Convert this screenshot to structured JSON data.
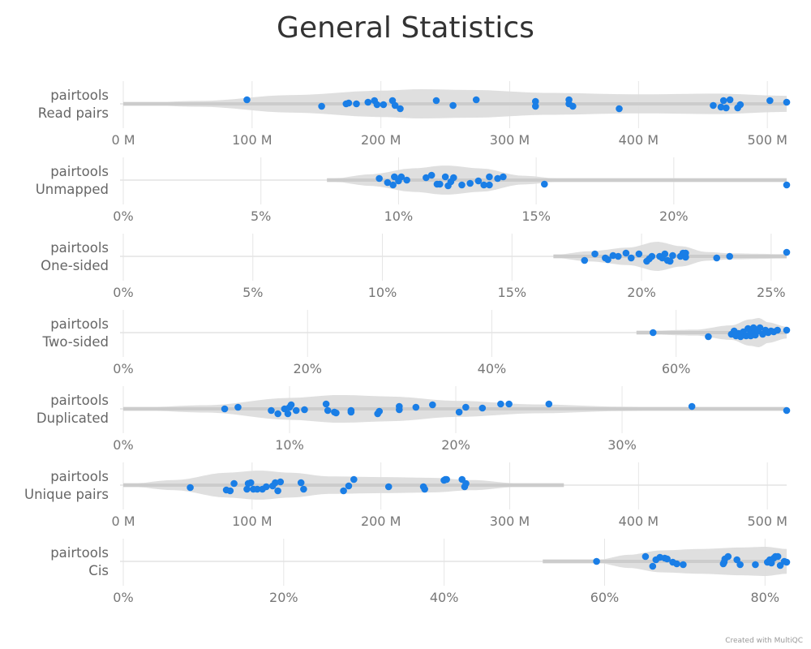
{
  "credit": "Created with MultiQC",
  "chart_data": {
    "type": "violin",
    "title": "General Statistics",
    "point_color": "#1a7ee6",
    "violin_color": "#dddddd",
    "panels": [
      {
        "label_line1": "pairtools",
        "label_line2": "Read pairs",
        "range": [
          0,
          515
        ],
        "ticks": [
          0,
          100,
          200,
          300,
          400,
          500
        ],
        "tick_labels": [
          "0 M",
          "100 M",
          "200 M",
          "300 M",
          "400 M",
          "500 M"
        ],
        "violin_start": 0,
        "violin_end": 515,
        "density": [
          [
            0,
            0.05
          ],
          [
            60,
            0.2
          ],
          [
            130,
            0.6
          ],
          [
            200,
            0.9
          ],
          [
            230,
            1.0
          ],
          [
            270,
            0.95
          ],
          [
            330,
            0.75
          ],
          [
            400,
            0.65
          ],
          [
            460,
            0.7
          ],
          [
            515,
            0.55
          ]
        ],
        "values": [
          96,
          154,
          173,
          175,
          181,
          190,
          195,
          197,
          202,
          209,
          211,
          215,
          243,
          256,
          274,
          320,
          320,
          346,
          346,
          349,
          385,
          458,
          464,
          466,
          468,
          471,
          477,
          479,
          502,
          515
        ],
        "jitter": [
          -0.25,
          0.15,
          0.0,
          -0.05,
          0.0,
          -0.1,
          -0.2,
          0.05,
          0.05,
          -0.2,
          0.1,
          0.3,
          -0.2,
          0.1,
          -0.25,
          0.15,
          -0.15,
          0.0,
          -0.25,
          0.15,
          0.3,
          0.1,
          0.2,
          -0.2,
          0.25,
          -0.25,
          0.25,
          0.05,
          -0.2,
          -0.1
        ]
      },
      {
        "label_line1": "pairtools",
        "label_line2": "Unmapped",
        "range": [
          0,
          24.1
        ],
        "ticks": [
          0,
          5,
          10,
          15,
          20
        ],
        "tick_labels": [
          "0%",
          "5%",
          "10%",
          "15%",
          "20%"
        ],
        "violin_start": 7.4,
        "violin_end": 24.1,
        "density": [
          [
            7.4,
            0.05
          ],
          [
            9,
            0.4
          ],
          [
            10.5,
            0.8
          ],
          [
            11.7,
            1.0
          ],
          [
            13,
            0.8
          ],
          [
            14.5,
            0.3
          ],
          [
            16,
            0.08
          ],
          [
            24.1,
            0.05
          ]
        ],
        "values": [
          9.3,
          9.6,
          9.8,
          9.85,
          10.0,
          10.1,
          10.3,
          11.5,
          11.4,
          11.8,
          11.9,
          12.3,
          12.0,
          11.0,
          11.2,
          11.7,
          12.6,
          12.9,
          13.1,
          13.3,
          13.3,
          13.6,
          13.8,
          15.3,
          24.1
        ],
        "jitter": [
          -0.1,
          0.15,
          0.3,
          -0.2,
          0.05,
          -0.2,
          0.0,
          0.25,
          0.25,
          0.35,
          0.1,
          0.3,
          -0.15,
          -0.15,
          -0.3,
          -0.2,
          0.2,
          0.05,
          0.3,
          0.3,
          -0.2,
          -0.1,
          -0.2,
          0.25,
          0.3
        ],
        "raw_values_note": ""
      },
      {
        "label_line1": "pairtools",
        "label_line2": "One-sided",
        "range": [
          0,
          25.6
        ],
        "ticks": [
          0,
          5,
          10,
          15,
          20,
          25
        ],
        "tick_labels": [
          "0%",
          "5%",
          "10%",
          "15%",
          "20%",
          "25%"
        ],
        "violin_start": 16.6,
        "violin_end": 25.6,
        "density": [
          [
            16.6,
            0.1
          ],
          [
            18,
            0.35
          ],
          [
            19.5,
            0.6
          ],
          [
            20.6,
            1.0
          ],
          [
            21.5,
            0.7
          ],
          [
            22.5,
            0.3
          ],
          [
            23.5,
            0.2
          ],
          [
            25.6,
            0.15
          ]
        ],
        "values": [
          17.8,
          18.2,
          18.6,
          18.7,
          18.9,
          19.1,
          19.4,
          19.6,
          19.9,
          20.2,
          20.4,
          20.3,
          20.7,
          20.8,
          20.9,
          21.0,
          21.1,
          21.2,
          21.5,
          21.6,
          21.7,
          21.7,
          22.9,
          23.4,
          25.6
        ],
        "jitter": [
          0.25,
          -0.15,
          0.1,
          0.2,
          -0.05,
          0.0,
          -0.2,
          0.1,
          -0.15,
          0.3,
          0.0,
          0.15,
          0.0,
          0.1,
          -0.15,
          0.25,
          0.3,
          -0.05,
          0.0,
          -0.2,
          0.05,
          -0.2,
          0.1,
          0.0,
          -0.25
        ]
      },
      {
        "label_line1": "pairtools",
        "label_line2": "Two-sided",
        "range": [
          0,
          72.0
        ],
        "ticks": [
          0,
          20,
          40,
          60
        ],
        "tick_labels": [
          "0%",
          "20%",
          "40%",
          "60%"
        ],
        "violin_start": 55.7,
        "violin_end": 72.0,
        "density": [
          [
            55.7,
            0.1
          ],
          [
            62,
            0.2
          ],
          [
            66,
            0.5
          ],
          [
            68,
            0.9
          ],
          [
            69,
            1.0
          ],
          [
            70,
            0.7
          ],
          [
            72,
            0.4
          ]
        ],
        "values": [
          57.5,
          63.5,
          66.0,
          66.3,
          66.5,
          66.8,
          67.0,
          67.3,
          67.6,
          67.8,
          68.0,
          68.1,
          68.2,
          68.4,
          68.5,
          68.6,
          68.9,
          69.1,
          69.4,
          69.7,
          70.0,
          70.3,
          70.6,
          71.0,
          72.0
        ],
        "jitter": [
          0.0,
          0.25,
          0.1,
          -0.1,
          0.2,
          0.05,
          0.25,
          -0.05,
          0.2,
          -0.25,
          0.1,
          0.2,
          -0.15,
          -0.3,
          0.0,
          0.15,
          -0.1,
          -0.3,
          0.1,
          -0.15,
          0.0,
          -0.1,
          -0.05,
          -0.15,
          -0.15
        ]
      },
      {
        "label_line1": "pairtools",
        "label_line2": "Duplicated",
        "range": [
          0,
          39.9
        ],
        "ticks": [
          0,
          10,
          20,
          30
        ],
        "tick_labels": [
          "0%",
          "10%",
          "20%",
          "30%"
        ],
        "violin_start": 0,
        "violin_end": 39.9,
        "density": [
          [
            0,
            0.05
          ],
          [
            5,
            0.25
          ],
          [
            10,
            0.75
          ],
          [
            13,
            0.95
          ],
          [
            16,
            0.85
          ],
          [
            20,
            0.55
          ],
          [
            25,
            0.3
          ],
          [
            30,
            0.15
          ],
          [
            35,
            0.07
          ],
          [
            39.9,
            0.07
          ]
        ],
        "values": [
          6.1,
          6.9,
          8.9,
          9.3,
          9.7,
          9.9,
          10.0,
          10.1,
          10.4,
          10.9,
          12.2,
          12.3,
          12.7,
          12.8,
          13.7,
          13.7,
          15.3,
          15.4,
          16.6,
          16.6,
          17.6,
          18.6,
          20.2,
          20.6,
          21.6,
          22.7,
          23.2,
          25.6,
          34.2,
          39.9
        ],
        "jitter": [
          0.0,
          -0.1,
          0.1,
          0.3,
          0.0,
          0.3,
          -0.1,
          -0.25,
          0.1,
          0.05,
          -0.3,
          0.1,
          0.2,
          0.25,
          0.1,
          0.2,
          0.3,
          0.15,
          -0.15,
          0.05,
          -0.1,
          -0.25,
          0.2,
          -0.1,
          -0.05,
          -0.3,
          -0.3,
          -0.3,
          -0.15,
          0.1
        ]
      },
      {
        "label_line1": "pairtools",
        "label_line2": "Unique pairs",
        "range": [
          0,
          515
        ],
        "ticks": [
          0,
          100,
          200,
          300,
          400,
          500
        ],
        "tick_labels": [
          "0 M",
          "100 M",
          "200 M",
          "300 M",
          "400 M",
          "500 M"
        ],
        "violin_start": 0,
        "violin_end": 342,
        "density": [
          [
            0,
            0.05
          ],
          [
            40,
            0.35
          ],
          [
            80,
            0.85
          ],
          [
            105,
            1.0
          ],
          [
            130,
            0.85
          ],
          [
            160,
            0.6
          ],
          [
            200,
            0.55
          ],
          [
            240,
            0.5
          ],
          [
            270,
            0.35
          ],
          [
            310,
            0.1
          ],
          [
            342,
            0.05
          ]
        ],
        "values": [
          52,
          80,
          83,
          86,
          96,
          97,
          99,
          101,
          104,
          108,
          111,
          116,
          118,
          120,
          122,
          138,
          140,
          171,
          175,
          179,
          206,
          233,
          234,
          249,
          250,
          251,
          263,
          265,
          266
        ],
        "jitter": [
          0.15,
          0.3,
          0.35,
          -0.1,
          0.25,
          -0.1,
          -0.15,
          0.25,
          0.25,
          0.25,
          0.1,
          0.05,
          -0.15,
          0.35,
          -0.2,
          -0.15,
          0.25,
          0.35,
          0.05,
          -0.35,
          0.1,
          0.1,
          0.25,
          -0.3,
          -0.35,
          -0.35,
          -0.35,
          0.1,
          -0.1
        ]
      },
      {
        "label_line1": "pairtools",
        "label_line2": "Cis",
        "range": [
          0,
          82.7
        ],
        "ticks": [
          0,
          20,
          40,
          60,
          80
        ],
        "tick_labels": [
          "0%",
          "20%",
          "40%",
          "60%",
          "80%"
        ],
        "violin_start": 52.3,
        "violin_end": 82.7,
        "density": [
          [
            52.3,
            0.05
          ],
          [
            59,
            0.1
          ],
          [
            63,
            0.45
          ],
          [
            67,
            0.75
          ],
          [
            72,
            0.85
          ],
          [
            77,
            0.95
          ],
          [
            80,
            1.0
          ],
          [
            82.7,
            0.85
          ]
        ],
        "values": [
          59.0,
          65.1,
          66.0,
          66.4,
          66.9,
          67.5,
          67.8,
          68.5,
          69.0,
          69.8,
          74.8,
          74.9,
          75.0,
          75.4,
          76.5,
          76.9,
          78.8,
          80.3,
          80.6,
          80.8,
          81.1,
          81.3,
          81.6,
          81.9,
          82.4,
          82.7
        ],
        "jitter": [
          0.0,
          -0.3,
          0.3,
          -0.1,
          -0.25,
          -0.2,
          -0.15,
          0.05,
          0.15,
          0.2,
          0.15,
          0.05,
          -0.15,
          -0.3,
          -0.1,
          0.2,
          0.2,
          0.05,
          -0.1,
          0.1,
          -0.2,
          -0.3,
          -0.3,
          0.25,
          0.0,
          0.05
        ]
      }
    ]
  }
}
